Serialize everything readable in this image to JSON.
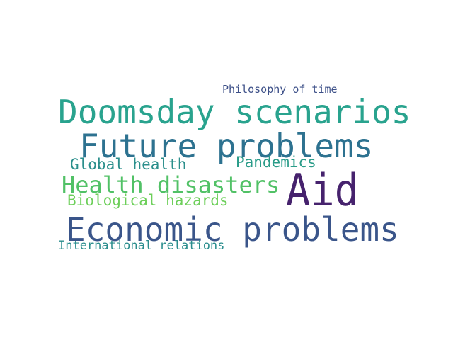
{
  "word_cloud": {
    "words": [
      {
        "text": "Aid",
        "color": "#46226d"
      },
      {
        "text": "Doomsday scenarios",
        "color": "#29a38e"
      },
      {
        "text": "Future problems",
        "color": "#2d7290"
      },
      {
        "text": "Economic problems",
        "color": "#3a558a"
      },
      {
        "text": "Health disasters",
        "color": "#51c166"
      },
      {
        "text": "Global health",
        "color": "#2b8f8c"
      },
      {
        "text": "Pandemics",
        "color": "#2a9c89"
      },
      {
        "text": "Biological hazards",
        "color": "#6dcf5a"
      },
      {
        "text": "International relations",
        "color": "#2a8d8d"
      },
      {
        "text": "Philosophy of time",
        "color": "#3d5088"
      }
    ]
  }
}
